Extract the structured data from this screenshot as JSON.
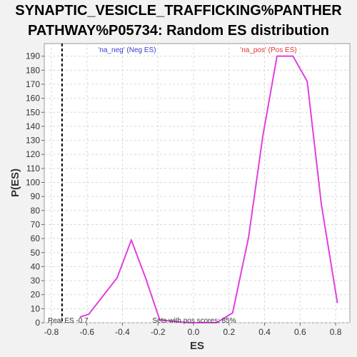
{
  "chart_data": {
    "type": "line",
    "title_lines": [
      "SYNAPTIC_VESICLE_TRAFFICKING%PANTHER",
      "PATHWAY%P05734: Random ES distribution"
    ],
    "xlabel": "ES",
    "ylabel": "P(ES)",
    "xlim": [
      -0.84,
      0.88
    ],
    "ylim": [
      0,
      199
    ],
    "xticks": [
      -0.8,
      -0.6,
      -0.4,
      -0.2,
      0.0,
      0.2,
      0.4,
      0.6,
      0.8
    ],
    "xtick_labels": [
      "-0.8",
      "-0.6",
      "-0.4",
      "-0.2",
      "0.0",
      "0.2",
      "0.4",
      "0.6",
      "0.8"
    ],
    "yticks": [
      0,
      10,
      20,
      30,
      40,
      50,
      60,
      70,
      80,
      90,
      100,
      110,
      120,
      130,
      140,
      150,
      160,
      170,
      180,
      190
    ],
    "ytick_labels": [
      "0",
      "10",
      "20",
      "30",
      "40",
      "50",
      "60",
      "70",
      "80",
      "90",
      "100",
      "110",
      "120",
      "130",
      "140",
      "150",
      "160",
      "170",
      "180",
      "190"
    ],
    "grid": true,
    "series": [
      {
        "color": "#e040e0",
        "x": [
          -0.64,
          -0.59,
          -0.51,
          -0.43,
          -0.35,
          -0.27,
          -0.19,
          -0.11,
          -0.03,
          0.05,
          0.13,
          0.22,
          0.31,
          0.39,
          0.47,
          0.56,
          0.64,
          0.72,
          0.81
        ],
        "y": [
          4,
          6,
          19,
          32,
          59,
          32,
          2,
          1,
          0,
          0,
          0,
          7,
          61,
          133,
          190,
          190,
          172,
          84,
          14
        ]
      }
    ],
    "real_es": -0.74,
    "annotations": {
      "neg_label": "'na_neg' (Neg ES)",
      "pos_label": "'na_pos' (Pos ES)",
      "real_es_label": "Real ES -0.7",
      "pos_scores_label": "Sets with pos scores: 85%"
    },
    "colors": {
      "neg": "#3a3acc",
      "pos": "#e03030",
      "line": "#e040e0"
    }
  }
}
